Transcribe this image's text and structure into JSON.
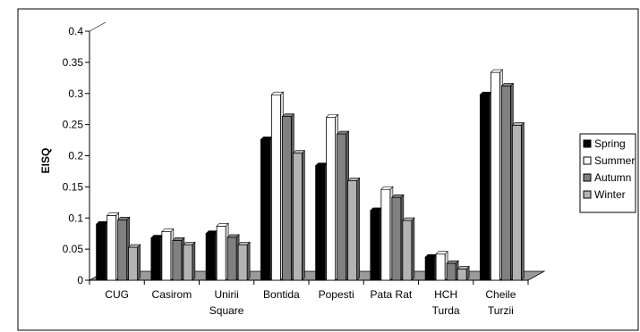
{
  "chart_data": {
    "type": "bar",
    "title": "",
    "xlabel": "",
    "ylabel": "EISQ",
    "ylim": [
      0,
      0.4
    ],
    "yticks": [
      "0",
      "0.05",
      "0.1",
      "0.15",
      "0.2",
      "0.25",
      "0.3",
      "0.35",
      "0.4"
    ],
    "categories": [
      [
        "CUG"
      ],
      [
        "Casirom"
      ],
      [
        "Unirii",
        "Square"
      ],
      [
        "Bontida"
      ],
      [
        "Popesti"
      ],
      [
        "Pata Rat"
      ],
      [
        "HCH",
        "Turda"
      ],
      [
        "Cheile",
        "Turzii"
      ]
    ],
    "series": [
      {
        "name": "Spring",
        "color": "#000000",
        "values": [
          0.09,
          0.068,
          0.075,
          0.226,
          0.184,
          0.112,
          0.037,
          0.298
        ]
      },
      {
        "name": "Summer",
        "color": "#ffffff",
        "values": [
          0.104,
          0.078,
          0.087,
          0.298,
          0.262,
          0.146,
          0.042,
          0.334
        ]
      },
      {
        "name": "Autumn",
        "color": "#808080",
        "values": [
          0.097,
          0.064,
          0.069,
          0.263,
          0.235,
          0.133,
          0.027,
          0.312
        ]
      },
      {
        "name": "Winter",
        "color": "#b3b3b3",
        "values": [
          0.053,
          0.057,
          0.057,
          0.204,
          0.16,
          0.096,
          0.018,
          0.249
        ]
      }
    ],
    "legend_position": "right",
    "grid": false,
    "style": "3d-cylinder-bars"
  }
}
